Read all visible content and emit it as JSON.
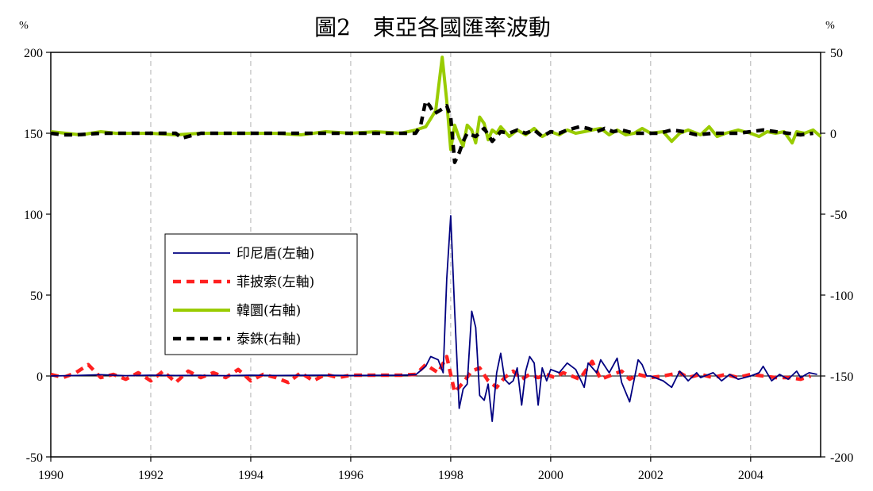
{
  "chart_data": {
    "type": "line",
    "title": "圖2　東亞各國匯率波動",
    "left_unit": "%",
    "right_unit": "%",
    "grid": "vertical dashed gridlines at each x tick",
    "legend_placement": "center-left",
    "y_left": {
      "min": -50,
      "max": 200,
      "ticks": [
        200,
        150,
        100,
        50,
        0,
        -50
      ]
    },
    "y_right": {
      "min": -200,
      "max": 50,
      "ticks": [
        50,
        0,
        -50,
        -100,
        -150,
        -200
      ]
    },
    "x": {
      "min": 1990,
      "max": 2005.4,
      "ticks": [
        1990,
        1992,
        1994,
        1996,
        1998,
        2000,
        2002,
        2004
      ]
    },
    "series": [
      {
        "name": "印尼盾(左軸)",
        "axis": "left",
        "color": "#000080",
        "style": "solid-thin",
        "points": [
          [
            1990.0,
            0
          ],
          [
            1990.5,
            0.3
          ],
          [
            1991.0,
            0.8
          ],
          [
            1991.5,
            0.2
          ],
          [
            1992.0,
            0.5
          ],
          [
            1992.5,
            0.3
          ],
          [
            1993.0,
            0.4
          ],
          [
            1993.5,
            0.2
          ],
          [
            1994.0,
            0.5
          ],
          [
            1994.5,
            0.3
          ],
          [
            1995.0,
            0.4
          ],
          [
            1995.5,
            0.5
          ],
          [
            1996.0,
            0.3
          ],
          [
            1996.5,
            0.4
          ],
          [
            1997.0,
            0.5
          ],
          [
            1997.3,
            0.8
          ],
          [
            1997.5,
            6
          ],
          [
            1997.6,
            12
          ],
          [
            1997.75,
            10
          ],
          [
            1997.85,
            2
          ],
          [
            1997.92,
            60
          ],
          [
            1998.0,
            99
          ],
          [
            1998.08,
            40
          ],
          [
            1998.17,
            -20
          ],
          [
            1998.25,
            -8
          ],
          [
            1998.33,
            -5
          ],
          [
            1998.42,
            40
          ],
          [
            1998.5,
            30
          ],
          [
            1998.58,
            -12
          ],
          [
            1998.67,
            -15
          ],
          [
            1998.75,
            -5
          ],
          [
            1998.83,
            -28
          ],
          [
            1998.92,
            2
          ],
          [
            1999.0,
            14
          ],
          [
            1999.08,
            -2
          ],
          [
            1999.17,
            -5
          ],
          [
            1999.25,
            -3
          ],
          [
            1999.33,
            5
          ],
          [
            1999.42,
            -18
          ],
          [
            1999.5,
            3
          ],
          [
            1999.58,
            12
          ],
          [
            1999.67,
            8
          ],
          [
            1999.75,
            -18
          ],
          [
            1999.83,
            5
          ],
          [
            1999.92,
            -3
          ],
          [
            2000.0,
            4
          ],
          [
            2000.17,
            2
          ],
          [
            2000.33,
            8
          ],
          [
            2000.5,
            4
          ],
          [
            2000.67,
            -7
          ],
          [
            2000.75,
            8
          ],
          [
            2000.92,
            2
          ],
          [
            2001.0,
            10
          ],
          [
            2001.17,
            2
          ],
          [
            2001.33,
            11
          ],
          [
            2001.42,
            -4
          ],
          [
            2001.58,
            -16
          ],
          [
            2001.75,
            10
          ],
          [
            2001.83,
            7
          ],
          [
            2001.92,
            0
          ],
          [
            2002.0,
            0
          ],
          [
            2002.25,
            -3
          ],
          [
            2002.42,
            -7
          ],
          [
            2002.58,
            3
          ],
          [
            2002.75,
            -3
          ],
          [
            2002.92,
            2
          ],
          [
            2003.0,
            -1
          ],
          [
            2003.25,
            2
          ],
          [
            2003.42,
            -3
          ],
          [
            2003.58,
            1
          ],
          [
            2003.75,
            -2
          ],
          [
            2004.0,
            0
          ],
          [
            2004.17,
            2
          ],
          [
            2004.25,
            6
          ],
          [
            2004.42,
            -3
          ],
          [
            2004.58,
            1
          ],
          [
            2004.75,
            -2
          ],
          [
            2004.92,
            3
          ],
          [
            2005.0,
            -1
          ],
          [
            2005.17,
            2
          ],
          [
            2005.33,
            1
          ]
        ]
      },
      {
        "name": "菲披索(左軸)",
        "axis": "left",
        "color": "#ff2020",
        "style": "dashed-thick",
        "points": [
          [
            1990.0,
            1
          ],
          [
            1990.25,
            -1
          ],
          [
            1990.5,
            2
          ],
          [
            1990.75,
            7
          ],
          [
            1991.0,
            -1
          ],
          [
            1991.25,
            1
          ],
          [
            1991.5,
            -2
          ],
          [
            1991.75,
            2
          ],
          [
            1992.0,
            -3
          ],
          [
            1992.25,
            3
          ],
          [
            1992.5,
            -4
          ],
          [
            1992.75,
            3
          ],
          [
            1993.0,
            -1
          ],
          [
            1993.25,
            2
          ],
          [
            1993.5,
            -1
          ],
          [
            1993.75,
            4
          ],
          [
            1994.0,
            -3
          ],
          [
            1994.25,
            1
          ],
          [
            1994.5,
            -1
          ],
          [
            1994.75,
            -4
          ],
          [
            1995.0,
            2
          ],
          [
            1995.25,
            -3
          ],
          [
            1995.5,
            1
          ],
          [
            1995.75,
            -1
          ],
          [
            1996.0,
            0.5
          ],
          [
            1996.5,
            0.5
          ],
          [
            1997.0,
            0.5
          ],
          [
            1997.3,
            1
          ],
          [
            1997.5,
            7
          ],
          [
            1997.75,
            2
          ],
          [
            1997.92,
            12
          ],
          [
            1998.08,
            -10
          ],
          [
            1998.25,
            -4
          ],
          [
            1998.42,
            3
          ],
          [
            1998.58,
            5
          ],
          [
            1998.75,
            -3
          ],
          [
            1998.92,
            -7
          ],
          [
            1999.08,
            -1
          ],
          [
            1999.25,
            3
          ],
          [
            1999.42,
            -2
          ],
          [
            1999.58,
            1
          ],
          [
            1999.75,
            -1
          ],
          [
            1999.92,
            1
          ],
          [
            2000.08,
            -1
          ],
          [
            2000.25,
            2
          ],
          [
            2000.42,
            0
          ],
          [
            2000.58,
            -2
          ],
          [
            2000.83,
            9
          ],
          [
            2001.0,
            -2
          ],
          [
            2001.25,
            1
          ],
          [
            2001.42,
            3
          ],
          [
            2001.58,
            -2
          ],
          [
            2001.75,
            1
          ],
          [
            2002.0,
            -1
          ],
          [
            2002.25,
            0
          ],
          [
            2002.58,
            2
          ],
          [
            2002.75,
            -1
          ],
          [
            2003.0,
            1
          ],
          [
            2003.25,
            -1
          ],
          [
            2003.5,
            1
          ],
          [
            2003.75,
            -1
          ],
          [
            2004.0,
            1
          ],
          [
            2004.25,
            0
          ],
          [
            2004.5,
            -1
          ],
          [
            2004.75,
            -1
          ],
          [
            2005.0,
            -2
          ],
          [
            2005.2,
            0
          ]
        ]
      },
      {
        "name": "韓圜(右軸)",
        "axis": "right",
        "color": "#99cc00",
        "style": "solid-thick",
        "points": [
          [
            1990.0,
            1
          ],
          [
            1990.3,
            0
          ],
          [
            1990.6,
            -1
          ],
          [
            1991.0,
            1
          ],
          [
            1991.3,
            0
          ],
          [
            1991.6,
            0
          ],
          [
            1992.0,
            0
          ],
          [
            1992.5,
            -1
          ],
          [
            1993.0,
            0
          ],
          [
            1993.5,
            0
          ],
          [
            1994.0,
            0
          ],
          [
            1994.5,
            0
          ],
          [
            1995.0,
            -1
          ],
          [
            1995.5,
            1
          ],
          [
            1996.0,
            0
          ],
          [
            1996.5,
            1
          ],
          [
            1997.0,
            0
          ],
          [
            1997.3,
            2
          ],
          [
            1997.5,
            4
          ],
          [
            1997.7,
            14
          ],
          [
            1997.83,
            47
          ],
          [
            1997.92,
            20
          ],
          [
            1998.0,
            -10
          ],
          [
            1998.08,
            5
          ],
          [
            1998.17,
            -3
          ],
          [
            1998.25,
            -8
          ],
          [
            1998.33,
            5
          ],
          [
            1998.42,
            2
          ],
          [
            1998.5,
            -6
          ],
          [
            1998.58,
            10
          ],
          [
            1998.67,
            6
          ],
          [
            1998.75,
            -4
          ],
          [
            1998.83,
            2
          ],
          [
            1998.92,
            0
          ],
          [
            1999.0,
            4
          ],
          [
            1999.17,
            -2
          ],
          [
            1999.33,
            2
          ],
          [
            1999.5,
            -1
          ],
          [
            1999.67,
            3
          ],
          [
            1999.83,
            -2
          ],
          [
            2000.0,
            1
          ],
          [
            2000.17,
            -1
          ],
          [
            2000.33,
            2
          ],
          [
            2000.5,
            0
          ],
          [
            2000.67,
            1
          ],
          [
            2000.83,
            2
          ],
          [
            2001.0,
            3
          ],
          [
            2001.17,
            -1
          ],
          [
            2001.33,
            2
          ],
          [
            2001.5,
            -1
          ],
          [
            2001.67,
            0
          ],
          [
            2001.83,
            3
          ],
          [
            2002.0,
            0
          ],
          [
            2002.25,
            1
          ],
          [
            2002.42,
            -5
          ],
          [
            2002.58,
            0
          ],
          [
            2002.75,
            2
          ],
          [
            2003.0,
            -1
          ],
          [
            2003.17,
            4
          ],
          [
            2003.33,
            -2
          ],
          [
            2003.5,
            0
          ],
          [
            2003.75,
            2
          ],
          [
            2004.0,
            0
          ],
          [
            2004.17,
            -2
          ],
          [
            2004.33,
            1
          ],
          [
            2004.5,
            0
          ],
          [
            2004.67,
            1
          ],
          [
            2004.83,
            -6
          ],
          [
            2004.92,
            1
          ],
          [
            2005.08,
            0
          ],
          [
            2005.25,
            2
          ],
          [
            2005.4,
            -2
          ]
        ]
      },
      {
        "name": "泰銖(右軸)",
        "axis": "right",
        "color": "#000000",
        "style": "dashed-thick",
        "points": [
          [
            1990.0,
            0
          ],
          [
            1990.25,
            -1
          ],
          [
            1990.5,
            -1
          ],
          [
            1991.0,
            0
          ],
          [
            1991.5,
            0
          ],
          [
            1992.0,
            0
          ],
          [
            1992.5,
            0
          ],
          [
            1992.62,
            -3
          ],
          [
            1993.0,
            0
          ],
          [
            1993.5,
            0
          ],
          [
            1994.0,
            0
          ],
          [
            1994.5,
            0
          ],
          [
            1995.0,
            0
          ],
          [
            1995.5,
            0
          ],
          [
            1996.0,
            0
          ],
          [
            1996.5,
            0
          ],
          [
            1997.0,
            0
          ],
          [
            1997.3,
            0
          ],
          [
            1997.4,
            5
          ],
          [
            1997.5,
            20
          ],
          [
            1997.58,
            17
          ],
          [
            1997.67,
            12
          ],
          [
            1997.83,
            15
          ],
          [
            1997.92,
            17
          ],
          [
            1998.0,
            10
          ],
          [
            1998.08,
            -18
          ],
          [
            1998.17,
            -12
          ],
          [
            1998.25,
            -5
          ],
          [
            1998.33,
            0
          ],
          [
            1998.5,
            -2
          ],
          [
            1998.67,
            3
          ],
          [
            1998.83,
            -5
          ],
          [
            1999.0,
            1
          ],
          [
            1999.17,
            0
          ],
          [
            1999.33,
            2
          ],
          [
            1999.5,
            0
          ],
          [
            1999.67,
            2
          ],
          [
            1999.83,
            -2
          ],
          [
            2000.0,
            1
          ],
          [
            2000.17,
            0
          ],
          [
            2000.33,
            2
          ],
          [
            2000.58,
            4
          ],
          [
            2000.75,
            3
          ],
          [
            2000.92,
            1
          ],
          [
            2001.08,
            3
          ],
          [
            2001.25,
            1
          ],
          [
            2001.42,
            2
          ],
          [
            2001.67,
            0
          ],
          [
            2001.92,
            0
          ],
          [
            2002.17,
            0
          ],
          [
            2002.42,
            2
          ],
          [
            2002.67,
            1
          ],
          [
            2002.92,
            -1
          ],
          [
            2003.25,
            0
          ],
          [
            2003.5,
            0
          ],
          [
            2003.75,
            0
          ],
          [
            2004.0,
            1
          ],
          [
            2004.25,
            2
          ],
          [
            2004.5,
            1
          ],
          [
            2004.75,
            0
          ],
          [
            2005.0,
            -1
          ],
          [
            2005.25,
            0
          ]
        ]
      }
    ]
  }
}
